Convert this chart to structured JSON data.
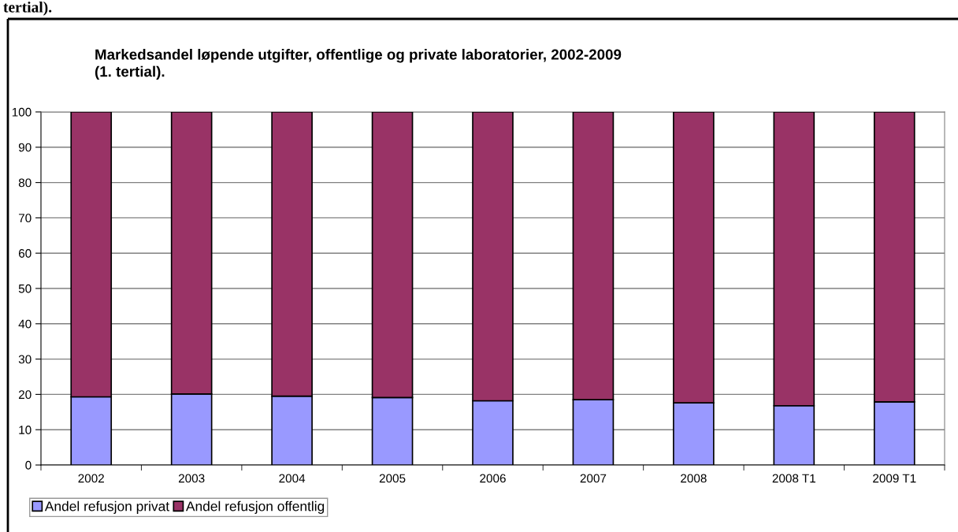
{
  "chart_data": {
    "type": "bar",
    "title": "Markedsandel løpende utgifter, offentlige og private laboratorier, 2002-2009\n(1. tertial).",
    "annotations": [
      "tertial)."
    ],
    "categories": [
      "2002",
      "2003",
      "2004",
      "2005",
      "2006",
      "2007",
      "2008",
      "2008 T1",
      "2009 T1"
    ],
    "series": [
      {
        "name": "Andel refusjon privat",
        "color": "#9999ff",
        "values": [
          19.3,
          20.1,
          19.5,
          19.1,
          18.2,
          18.5,
          17.6,
          16.8,
          17.9
        ]
      },
      {
        "name": "Andel refusjon offentlig",
        "color": "#993366",
        "values": [
          80.7,
          79.9,
          80.5,
          80.9,
          81.8,
          81.5,
          82.4,
          83.2,
          82.1
        ]
      }
    ],
    "stacked": true,
    "ylim": [
      0,
      100
    ],
    "yticks": [
      0,
      10,
      20,
      30,
      40,
      50,
      60,
      70,
      80,
      90,
      100
    ],
    "grid": "y",
    "legend": "bottom left"
  }
}
